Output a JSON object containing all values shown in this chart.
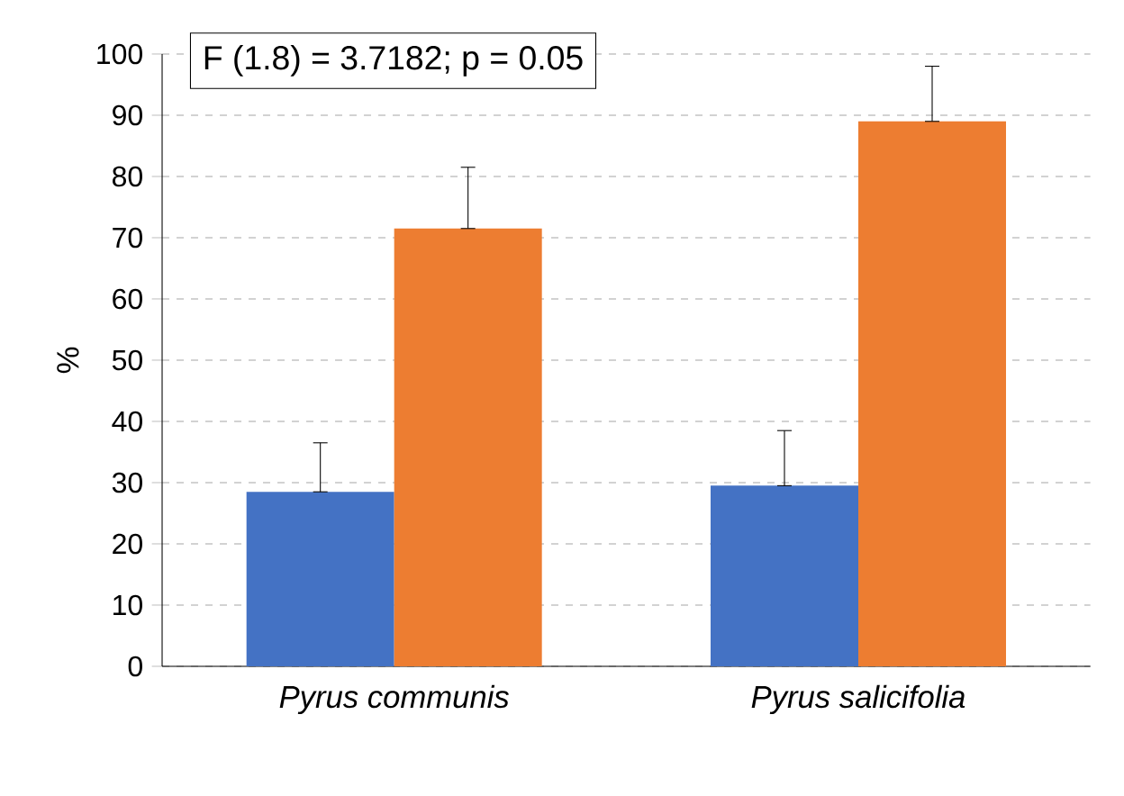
{
  "chart_data": {
    "type": "bar",
    "ylabel": "%",
    "categories": [
      "Pyrus communis",
      "Pyrus salicifolia"
    ],
    "series": [
      {
        "color": "#4472c4",
        "values": [
          28.5,
          29.5
        ],
        "errors": [
          [
            28.5,
            36.5
          ],
          [
            29.5,
            38.5
          ]
        ]
      },
      {
        "color": "#ed7d31",
        "values": [
          71.5,
          89
        ],
        "errors": [
          [
            71.5,
            81.5
          ],
          [
            89,
            98
          ]
        ]
      }
    ],
    "ylim": [
      0,
      100
    ],
    "yticks": [
      0,
      10,
      20,
      30,
      40,
      50,
      60,
      70,
      80,
      90,
      100
    ],
    "grid": "y",
    "annotations": [
      "F (1.8) = 3.7182; p = 0.05"
    ]
  }
}
